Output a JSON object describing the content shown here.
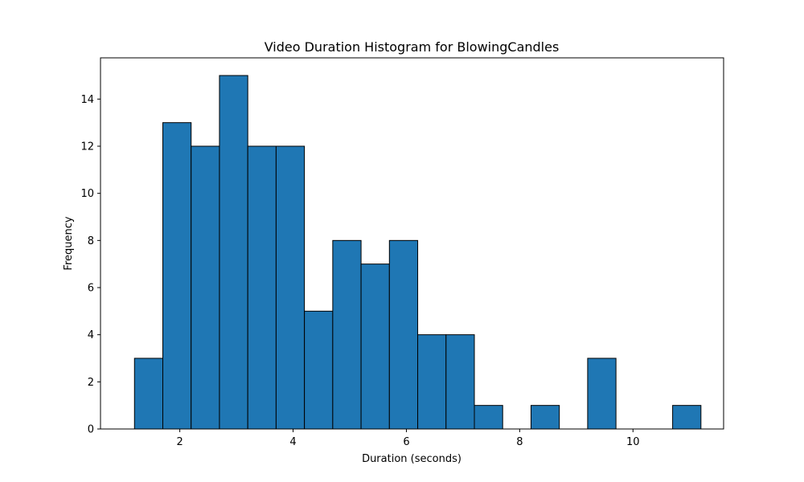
{
  "chart_data": {
    "type": "bar",
    "title": "Video Duration Histogram for BlowingCandles",
    "xlabel": "Duration (seconds)",
    "ylabel": "Frequency",
    "xlim": [
      0.6,
      11.6
    ],
    "ylim": [
      0,
      15.75
    ],
    "x_ticks": [
      2,
      4,
      6,
      8,
      10
    ],
    "y_ticks": [
      0,
      2,
      4,
      6,
      8,
      10,
      12,
      14
    ],
    "bin_edges": [
      1.2,
      1.7,
      2.2,
      2.7,
      3.2,
      3.7,
      4.2,
      4.7,
      5.2,
      5.7,
      6.2,
      6.7,
      7.2,
      7.7,
      8.2,
      8.7,
      9.2,
      9.7,
      10.2,
      10.7,
      11.2
    ],
    "values": [
      3,
      13,
      12,
      15,
      12,
      12,
      5,
      8,
      7,
      8,
      4,
      4,
      1,
      0,
      1,
      0,
      3,
      0,
      0,
      1
    ],
    "bar_color": "#1f77b4",
    "edge_color": "#000000",
    "grid": false,
    "legend": "none"
  }
}
